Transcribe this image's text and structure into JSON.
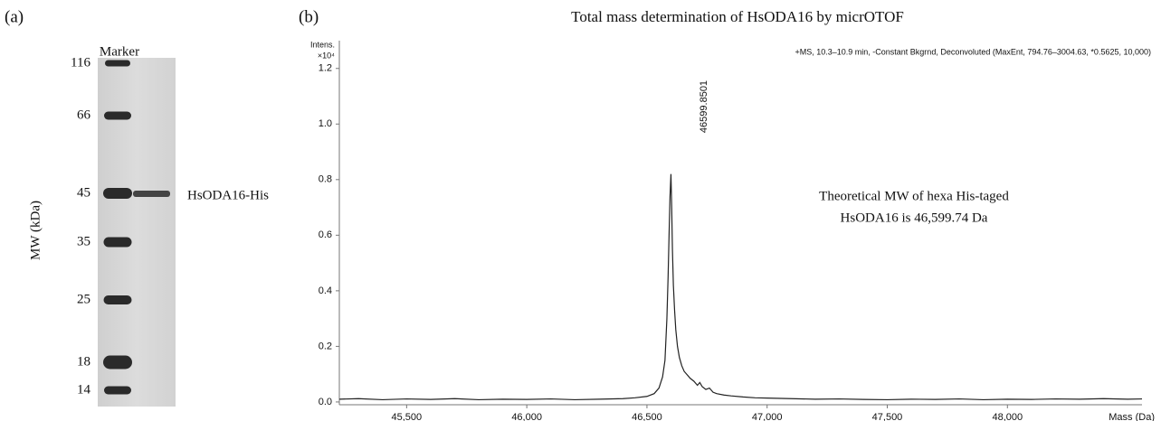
{
  "panel_a": {
    "panel_label": "(a)",
    "lane_label": "Marker",
    "axis_label": "MW (kDa)",
    "markers": [
      116,
      66,
      45,
      35,
      25,
      18,
      14
    ],
    "band_label": "HsODA16-His"
  },
  "chart_data": {
    "type": "line",
    "panel_label": "(b)",
    "title": "Total mass determination of HsODA16 by micrOTOF",
    "subtitle": "+MS, 10.3–10.9 min, -Constant Bkgrnd, Deconvoluted (MaxEnt, 794.76–3004.63, *0.5625, 10,000)",
    "y_label": "Intens.",
    "y_unit": "×10⁴",
    "x_label": "Mass (Da)",
    "annotations": [
      "46599.8501",
      "Theoretical MW of hexa His-taged",
      "HsODA16 is 46,599.74 Da"
    ],
    "x": [
      45220,
      45300,
      45400,
      45500,
      45600,
      45700,
      45800,
      45900,
      46000,
      46100,
      46200,
      46300,
      46400,
      46450,
      46500,
      46530,
      46550,
      46565,
      46575,
      46583,
      46588,
      46592,
      46596,
      46599.8501,
      46603,
      46606,
      46610,
      46615,
      46620,
      46627,
      46635,
      46645,
      46655,
      46665,
      46680,
      46695,
      46710,
      46720,
      46730,
      46745,
      46760,
      46775,
      46790,
      46820,
      46850,
      46900,
      46950,
      47000,
      47100,
      47200,
      47300,
      47400,
      47500,
      47600,
      47700,
      47800,
      47900,
      48000,
      48100,
      48200,
      48300,
      48400,
      48500,
      48560
    ],
    "series": [
      {
        "color": "#222222",
        "values": [
          0.01,
          0.012,
          0.008,
          0.011,
          0.009,
          0.012,
          0.008,
          0.01,
          0.009,
          0.011,
          0.008,
          0.01,
          0.012,
          0.015,
          0.02,
          0.03,
          0.05,
          0.09,
          0.15,
          0.3,
          0.45,
          0.6,
          0.74,
          0.82,
          0.7,
          0.55,
          0.42,
          0.33,
          0.26,
          0.2,
          0.16,
          0.13,
          0.11,
          0.1,
          0.085,
          0.075,
          0.06,
          0.07,
          0.055,
          0.045,
          0.05,
          0.035,
          0.03,
          0.025,
          0.022,
          0.018,
          0.015,
          0.014,
          0.012,
          0.01,
          0.011,
          0.009,
          0.008,
          0.01,
          0.009,
          0.011,
          0.008,
          0.01,
          0.009,
          0.011,
          0.01,
          0.012,
          0.01,
          0.011
        ]
      }
    ],
    "xlim": [
      45220,
      48560
    ],
    "ylim": [
      -0.01,
      1.3
    ],
    "xticks": [
      {
        "value": 45500,
        "label": "45,500"
      },
      {
        "value": 46000,
        "label": "46,000"
      },
      {
        "value": 46500,
        "label": "46,500"
      },
      {
        "value": 47000,
        "label": "47,000"
      },
      {
        "value": 47500,
        "label": "47,500"
      },
      {
        "value": 48000,
        "label": "48,000"
      }
    ],
    "yticks": [
      {
        "value": 0,
        "label": "0.0"
      },
      0.2,
      0.4,
      0.6,
      0.8,
      {
        "value": 1,
        "label": "1.0"
      },
      1.2
    ],
    "grid": false
  }
}
